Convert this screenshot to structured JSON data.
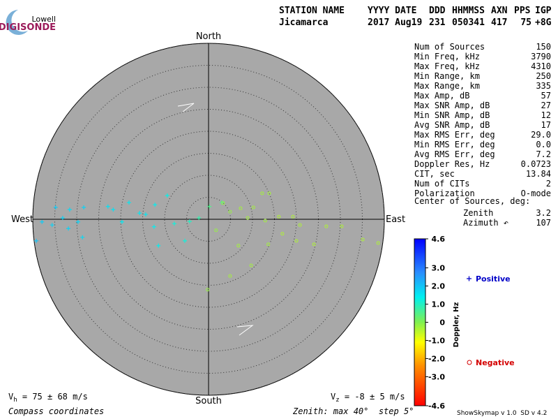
{
  "logo": {
    "top": "Lowell",
    "bottom": "DIGISONDE"
  },
  "header": [
    [
      "STATION NAME",
      "Jicamarca"
    ],
    [
      "YYYY DATE",
      "2017 Aug19"
    ],
    [
      "DDD",
      "231"
    ],
    [
      "HHMMSS",
      "050341"
    ],
    [
      "AXN",
      "417"
    ],
    [
      "PPS",
      "75"
    ],
    [
      "IGP",
      "+8G"
    ]
  ],
  "compass": {
    "north": "North",
    "south": "South",
    "east": "East",
    "west": "West"
  },
  "stats": [
    [
      "Num of Sources",
      "150"
    ],
    [
      "Min Freq, kHz",
      "3790"
    ],
    [
      "Max Freq, kHz",
      "4310"
    ],
    [
      "Min Range, km",
      "250"
    ],
    [
      "Max Range, km",
      "335"
    ],
    [
      "Max Amp, dB",
      "57"
    ],
    [
      "Max SNR Amp, dB",
      "27"
    ],
    [
      "Min SNR Amp, dB",
      "12"
    ],
    [
      "Avg SNR Amp, dB",
      "17"
    ],
    [
      "Max RMS Err, deg",
      "29.0"
    ],
    [
      "Min RMS Err, deg",
      "0.0"
    ],
    [
      "Avg RMS Err, deg",
      "7.2"
    ],
    [
      "Doppler Res, Hz",
      "0.0723"
    ],
    [
      "CIT, sec",
      "13.84"
    ],
    [
      "Num of CITs",
      "2"
    ],
    [
      "Polarization",
      "O-mode"
    ]
  ],
  "center_heading": "Center of Sources, deg:",
  "center": [
    [
      "Zenith",
      "3.2"
    ],
    [
      "Azimuth ↶",
      "107"
    ]
  ],
  "colorbar": {
    "title": "Doppler, Hz",
    "ticks": [
      4.6,
      {
        "value": 3,
        "label": "3.0"
      },
      {
        "value": 2,
        "label": "2.0"
      },
      {
        "value": 1,
        "label": "1.0"
      },
      0,
      {
        "value": -1,
        "label": "-1.0"
      },
      {
        "value": -2,
        "label": "-2.0"
      },
      {
        "value": -3,
        "label": "-3.0"
      },
      -4.6
    ]
  },
  "skymap": {
    "rlim": [
      0,
      40
    ],
    "rticks": [
      5,
      10,
      15,
      20,
      25,
      30,
      35,
      40
    ],
    "series": [
      {
        "name": "Positive",
        "color": "#0000c8",
        "x": [
          0.2,
          3.0,
          -9.4,
          -12.2,
          -14.3,
          -12.4,
          -11.4,
          -5.4,
          -4.3,
          -18.1,
          -21.7,
          -22.9,
          -19.7,
          -28.4,
          -31.6,
          -33.2,
          -34.8,
          -35.6,
          -37.9,
          -39.2,
          -29.7,
          -28.7,
          -31.9,
          -7.8,
          -2.2,
          -15.7
        ],
        "y": [
          2.9,
          3.8,
          5.4,
          3.3,
          1.1,
          -1.7,
          -6.0,
          -4.9,
          -0.5,
          3.8,
          2.2,
          2.9,
          -0.6,
          2.7,
          2.2,
          0.3,
          2.7,
          -1.3,
          -0.6,
          -4.9,
          -0.6,
          -4.1,
          -2.1,
          -1.0,
          0.3,
          1.4
        ],
        "doppler": [
          0.5,
          0.6,
          1.3,
          1.4,
          1.5,
          1.4,
          1.4,
          1.2,
          1.0,
          1.5,
          1.6,
          1.6,
          1.5,
          1.8,
          1.7,
          1.8,
          1.9,
          1.8,
          1.9,
          2.0,
          1.8,
          1.7,
          1.8,
          1.2,
          0.8,
          1.5
        ]
      },
      {
        "name": "Negative",
        "color": "#d40000",
        "x": [
          12.2,
          13.8,
          10.2,
          7.3,
          4.9,
          3.3,
          8.9,
          12.9,
          16.0,
          19.2,
          20.8,
          16.8,
          20.0,
          24.0,
          26.8,
          30.3,
          35.1,
          38.6,
          9.7,
          4.9,
          6.8,
          13.6,
          -0.2,
          1.7
        ],
        "y": [
          5.9,
          5.9,
          2.7,
          2.5,
          1.7,
          3.7,
          0.3,
          -0.3,
          0.6,
          0.6,
          -1.3,
          -3.3,
          -4.9,
          -5.7,
          -1.6,
          -1.6,
          -4.6,
          -5.4,
          -10.5,
          -12.9,
          -6.0,
          -5.7,
          -16.0,
          -2.5
        ],
        "doppler": [
          -0.3,
          -0.3,
          -0.3,
          -0.3,
          -0.2,
          -0.2,
          -0.3,
          -0.3,
          -0.4,
          -0.4,
          -0.4,
          -0.4,
          -0.4,
          -0.4,
          -0.4,
          -0.4,
          -0.4,
          -0.4,
          -0.3,
          -0.3,
          -0.3,
          -0.3,
          -0.2,
          -0.2
        ]
      }
    ]
  },
  "footer": {
    "vh": {
      "symbol": "V",
      "sub": "h",
      "text": " = 75 ± 68 m/s"
    },
    "vz": {
      "symbol": "V",
      "sub": "z",
      "text": " = -8 ± 5 m/s"
    },
    "coords": "Compass coordinates",
    "zenith": "Zenith: max 40°  step 5°",
    "version": "ShowSkymap v 1.0  SD v 4.2"
  }
}
